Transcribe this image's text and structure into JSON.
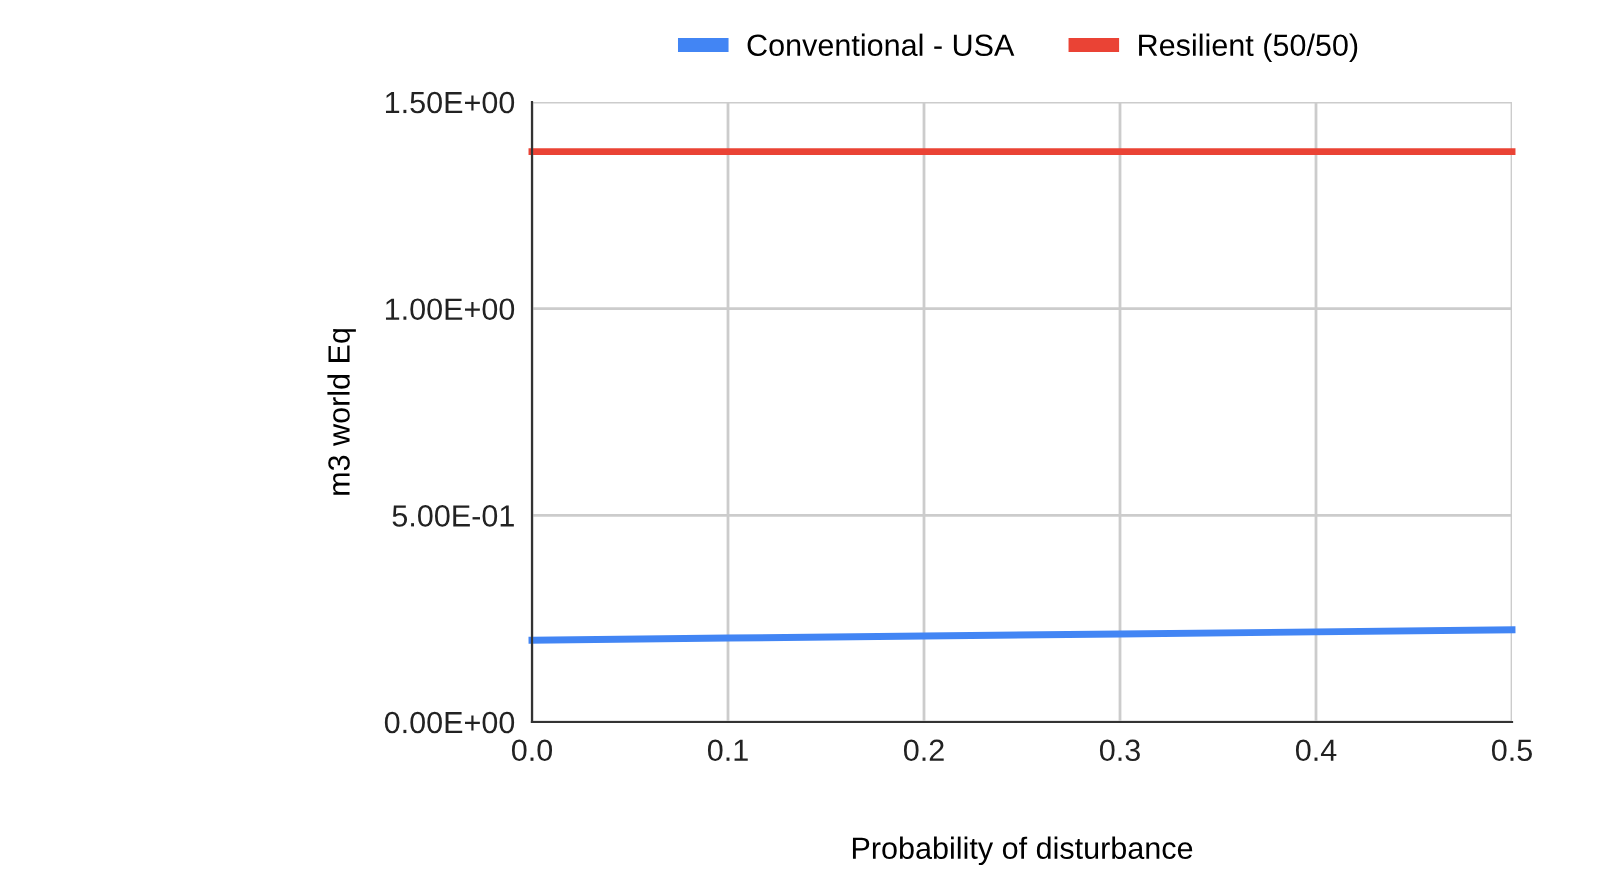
{
  "chart_data": {
    "type": "line",
    "xlabel": "Probability of disturbance",
    "ylabel": "m3 world Eq",
    "x": [
      0,
      0.1,
      0.2,
      0.3,
      0.4,
      0.5
    ],
    "series": [
      {
        "name": "Conventional - USA",
        "color": "#4285f4",
        "values": [
          0.198,
          0.203,
          0.208,
          0.213,
          0.218,
          0.223
        ]
      },
      {
        "name": "Resilient (50/50)",
        "color": "#ea4335",
        "values": [
          1.38,
          1.38,
          1.38,
          1.38,
          1.38,
          1.38
        ]
      }
    ],
    "xlim": [
      0,
      0.5
    ],
    "xticks": [
      {
        "value": 0,
        "label": "0.0"
      },
      0.1,
      0.2,
      0.3,
      0.4,
      0.5
    ],
    "ylim": [
      0,
      1.5
    ],
    "yticks": [
      {
        "value": 0,
        "label": "0.00E+00"
      },
      {
        "value": 0.5,
        "label": "5.00E-01"
      },
      {
        "value": 1.0,
        "label": "1.00E+00"
      },
      {
        "value": 1.5,
        "label": "1.50E+00"
      }
    ],
    "grid": true,
    "legend": "top",
    "marker": "none",
    "line_style": "solid"
  }
}
